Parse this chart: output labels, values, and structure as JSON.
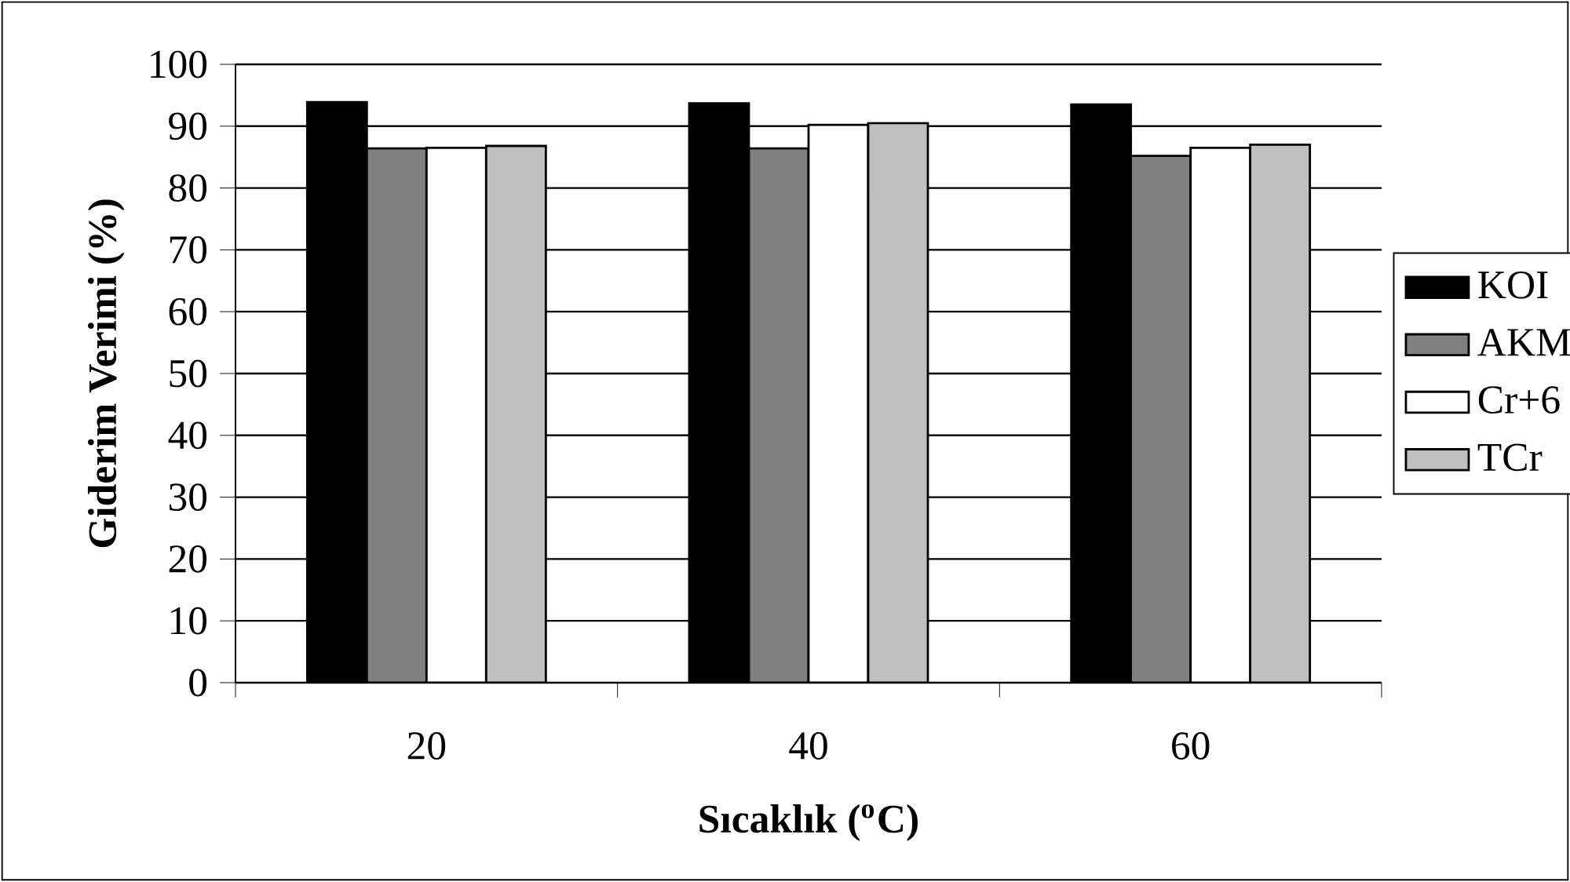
{
  "chart_data": {
    "type": "bar",
    "xlabel": "Sıcaklık ($^{o}$C)",
    "ylabel": "Giderim Verimi (%)",
    "categories": [
      "20",
      "40",
      "60"
    ],
    "series": [
      {
        "name": "KOI",
        "color": "#000000",
        "values": [
          93.9,
          93.7,
          93.5
        ]
      },
      {
        "name": "AKM",
        "color": "#808080",
        "values": [
          86.4,
          86.4,
          85.2
        ]
      },
      {
        "name": "Cr+6",
        "color": "#ffffff",
        "values": [
          86.5,
          90.2,
          86.5
        ]
      },
      {
        "name": "TCr",
        "color": "#c0c0c0",
        "values": [
          86.8,
          90.5,
          87.0
        ]
      }
    ],
    "ylim": [
      0,
      100
    ],
    "yticks": [
      0,
      10,
      20,
      30,
      40,
      50,
      60,
      70,
      80,
      90,
      100
    ],
    "grid": "y",
    "legend": "right"
  }
}
